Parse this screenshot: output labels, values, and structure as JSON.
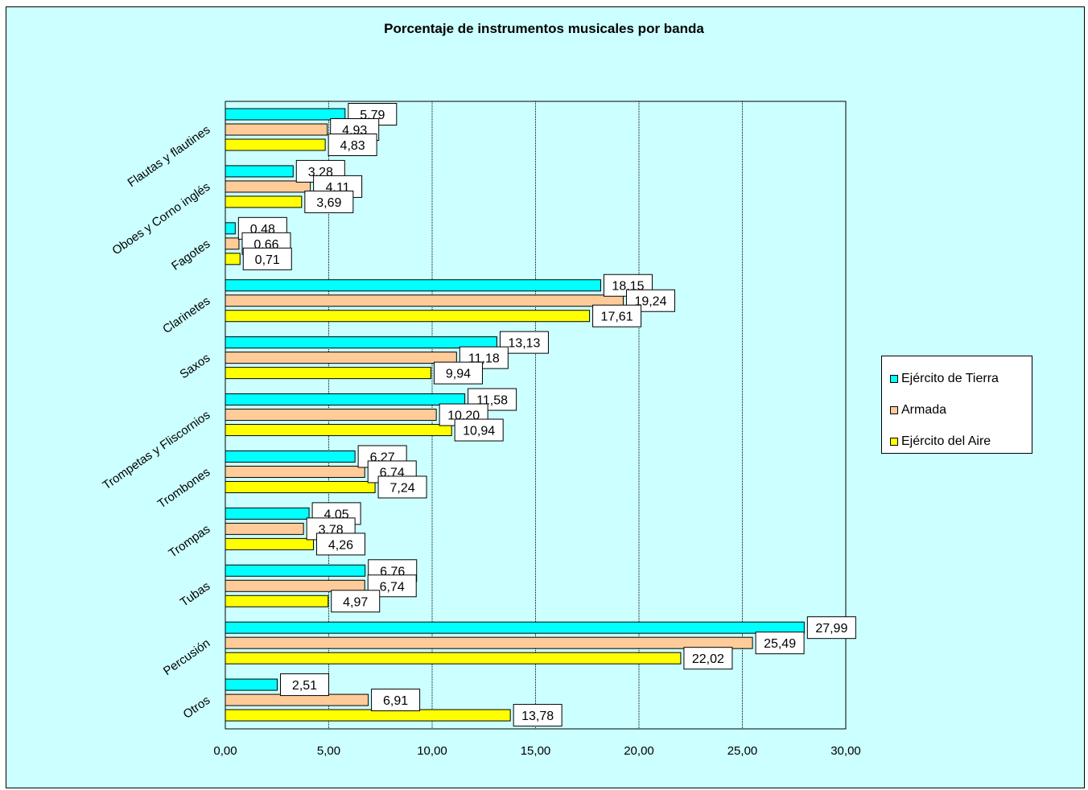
{
  "chart_data": {
    "type": "bar",
    "orientation": "horizontal",
    "title": "Porcentaje de instrumentos musicales por banda",
    "xlabel": "",
    "ylabel": "",
    "xlim": [
      0,
      30
    ],
    "x_ticks": [
      "0,00",
      "5,00",
      "10,00",
      "15,00",
      "20,00",
      "25,00",
      "30,00"
    ],
    "grid": true,
    "legend_position": "right",
    "categories": [
      "Flautas y flautines",
      "Oboes y Corno inglés",
      "Fagotes",
      "Clarinetes",
      "Saxos",
      "Trompetas y Fliscornios",
      "Trombones",
      "Trompas",
      "Tubas",
      "Percusión",
      "Otros"
    ],
    "series": [
      {
        "name": "Ejército de Tierra",
        "color": "#00ffff",
        "values": [
          5.79,
          3.28,
          0.48,
          18.15,
          13.13,
          11.58,
          6.27,
          4.05,
          6.76,
          27.99,
          2.51
        ],
        "labels": [
          "5,79",
          "3,28",
          "0,48",
          "18,15",
          "13,13",
          "11,58",
          "6,27",
          "4,05",
          "6,76",
          "27,99",
          "2,51"
        ]
      },
      {
        "name": "Armada",
        "color": "#ffcc99",
        "values": [
          4.93,
          4.11,
          0.66,
          19.24,
          11.18,
          10.2,
          6.74,
          3.78,
          6.74,
          25.49,
          6.91
        ],
        "labels": [
          "4,93",
          "4,11",
          "0,66",
          "19,24",
          "11,18",
          "10,20",
          "6,74",
          "3,78",
          "6,74",
          "25,49",
          "6,91"
        ]
      },
      {
        "name": "Ejército del Aire",
        "color": "#ffff00",
        "values": [
          4.83,
          3.69,
          0.71,
          17.61,
          9.94,
          10.94,
          7.24,
          4.26,
          4.97,
          22.02,
          13.78
        ],
        "labels": [
          "4,83",
          "3,69",
          "0,71",
          "17,61",
          "9,94",
          "10,94",
          "7,24",
          "4,26",
          "4,97",
          "22,02",
          "13,78"
        ]
      }
    ]
  }
}
